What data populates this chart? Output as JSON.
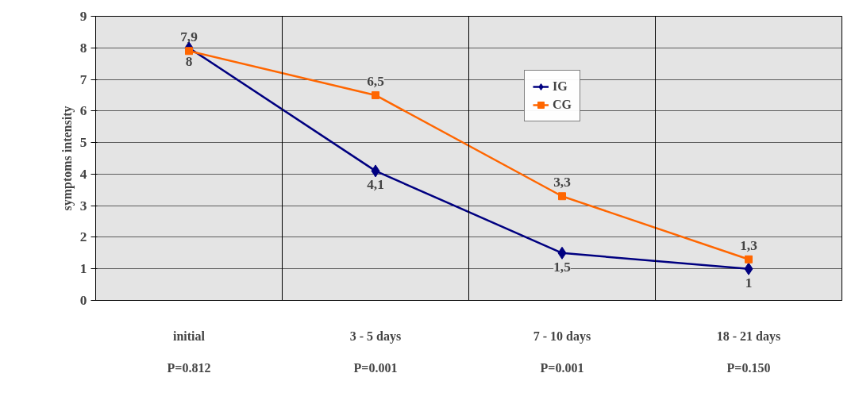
{
  "chart_data": {
    "type": "line",
    "ylabel": "symptoms intensity",
    "categories": [
      "initial",
      "3 - 5 days",
      "7 - 10 days",
      "18 - 21 days"
    ],
    "series": [
      {
        "name": "IG",
        "color": "#000080",
        "marker": "diamond",
        "values": [
          8,
          4.1,
          1.5,
          1
        ],
        "value_labels": [
          "8",
          "4,1",
          "1,5",
          "1"
        ]
      },
      {
        "name": "CG",
        "color": "#ff6600",
        "marker": "square",
        "values": [
          7.9,
          6.5,
          3.3,
          1.3
        ],
        "value_labels": [
          "7,9",
          "6,5",
          "3,3",
          "1,3"
        ]
      }
    ],
    "annotations": [
      "P=0.812",
      "P=0.001",
      "P=0.001",
      "P=0.150"
    ],
    "ylim": [
      0,
      9
    ],
    "yticks": [
      0,
      1,
      2,
      3,
      4,
      5,
      6,
      7,
      8,
      9
    ],
    "grid": "y",
    "legend": "top right",
    "line_style": "solid"
  }
}
